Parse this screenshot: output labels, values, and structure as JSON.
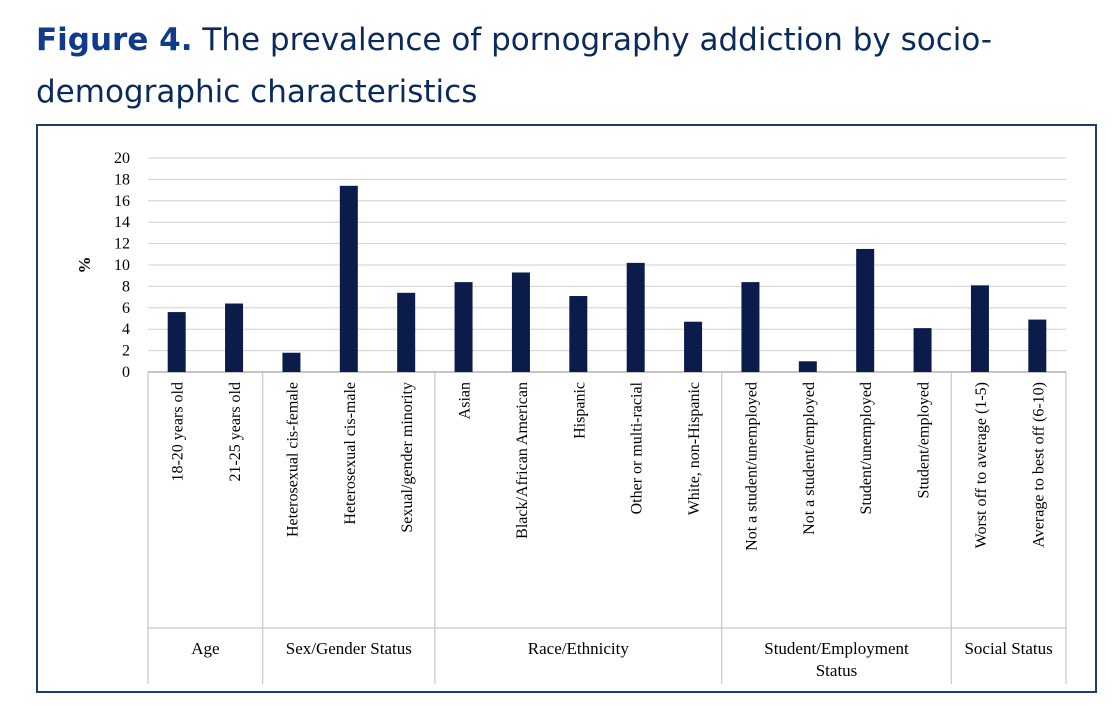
{
  "caption": {
    "label": "Figure 4.",
    "text": "The prevalence of pornography addiction by socio-demographic characteristics"
  },
  "colors": {
    "bar": "#0c1c4a",
    "caption": "#0b2a5c",
    "frame": "#1f3d73",
    "grid": "#d0d0d0"
  },
  "chart_data": {
    "type": "bar",
    "title": "",
    "xlabel": "",
    "ylabel": "%",
    "ylim": [
      0,
      20
    ],
    "yticks": [
      0,
      2,
      4,
      6,
      8,
      10,
      12,
      14,
      16,
      18,
      20
    ],
    "grid": true,
    "categories": [
      "18-20 years old",
      "21-25 years old",
      "Heterosexual cis-female",
      "Heterosexual cis-male",
      "Sexual/gender minority",
      "Asian",
      "Black/African American",
      "Hispanic",
      "Other or multi-racial",
      "White, non-Hispanic",
      "Not a student/unemployed",
      "Not a student/employed",
      "Student/unemployed",
      "Student/employed",
      "Worst off to average (1-5)",
      "Average to best off (6-10)"
    ],
    "values": [
      5.6,
      6.4,
      1.8,
      17.4,
      7.4,
      8.4,
      9.3,
      7.1,
      10.2,
      4.7,
      8.4,
      1.0,
      11.5,
      4.1,
      8.1,
      4.9
    ],
    "groups": [
      {
        "lines": [
          "Age"
        ],
        "start": 0,
        "count": 2
      },
      {
        "lines": [
          "Sex/Gender Status"
        ],
        "start": 2,
        "count": 3
      },
      {
        "lines": [
          "Race/Ethnicity"
        ],
        "start": 5,
        "count": 5
      },
      {
        "lines": [
          "Student/Employment",
          "Status"
        ],
        "start": 10,
        "count": 4
      },
      {
        "lines": [
          "Social Status"
        ],
        "start": 14,
        "count": 2
      }
    ]
  }
}
